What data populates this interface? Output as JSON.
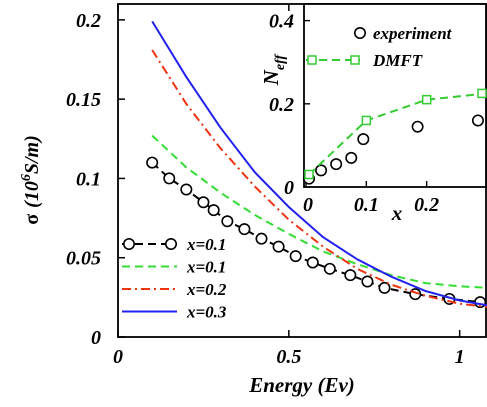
{
  "chart_data": [
    {
      "type": "line",
      "xlabel": "Energy (Ev)",
      "ylabel_symbol": "σ",
      "ylabel_unit_open": "(10",
      "ylabel_unit_exp": "6",
      "ylabel_unit_close": "S/m)",
      "xlim": [
        0,
        1.08
      ],
      "ylim": [
        0,
        0.21
      ],
      "xticks": [
        {
          "value": 0,
          "label": "0"
        },
        {
          "value": 0.5,
          "label": "0.5"
        },
        {
          "value": 1,
          "label": "1"
        }
      ],
      "yticks": [
        {
          "value": 0,
          "label": "0"
        },
        {
          "value": 0.05,
          "label": "0.05"
        },
        {
          "value": 0.1,
          "label": "0.1"
        },
        {
          "value": 0.15,
          "label": "0.15"
        },
        {
          "value": 0.2,
          "label": "0.2"
        }
      ],
      "series": [
        {
          "name": "x=0.1",
          "color": "#000000",
          "style": "dash-circle",
          "x": [
            0.1,
            0.15,
            0.2,
            0.25,
            0.28,
            0.32,
            0.37,
            0.42,
            0.47,
            0.52,
            0.57,
            0.62,
            0.68,
            0.73,
            0.78,
            0.87,
            0.97,
            1.06
          ],
          "y": [
            0.11,
            0.1,
            0.093,
            0.085,
            0.08,
            0.073,
            0.068,
            0.062,
            0.057,
            0.051,
            0.047,
            0.043,
            0.039,
            0.035,
            0.031,
            0.027,
            0.024,
            0.022
          ]
        },
        {
          "name": "x=0.1",
          "color": "#33dd33",
          "style": "dash",
          "x": [
            0.1,
            0.2,
            0.3,
            0.4,
            0.5,
            0.6,
            0.7,
            0.8,
            0.9,
            1.0,
            1.08
          ],
          "y": [
            0.127,
            0.107,
            0.091,
            0.077,
            0.065,
            0.054,
            0.046,
            0.039,
            0.034,
            0.032,
            0.031
          ]
        },
        {
          "name": "x=0.2",
          "color": "#ee3311",
          "style": "dashdot",
          "x": [
            0.1,
            0.2,
            0.3,
            0.4,
            0.5,
            0.6,
            0.7,
            0.8,
            0.9,
            1.0,
            1.08
          ],
          "y": [
            0.181,
            0.147,
            0.119,
            0.095,
            0.074,
            0.057,
            0.043,
            0.033,
            0.026,
            0.021,
            0.019
          ]
        },
        {
          "name": "x=0.3",
          "color": "#2222ee",
          "style": "solid",
          "x": [
            0.1,
            0.2,
            0.3,
            0.4,
            0.5,
            0.6,
            0.7,
            0.8,
            0.9,
            1.0,
            1.08
          ],
          "y": [
            0.199,
            0.164,
            0.132,
            0.104,
            0.082,
            0.063,
            0.049,
            0.038,
            0.029,
            0.023,
            0.02
          ]
        }
      ],
      "legend_position": "bottom-left"
    },
    {
      "type": "line",
      "xlabel": "x",
      "ylabel_main": "N",
      "ylabel_sub": "eff",
      "xlim": [
        0,
        0.3
      ],
      "ylim": [
        0,
        0.44
      ],
      "xticks": [
        {
          "value": 0,
          "label": "0"
        },
        {
          "value": 0.1,
          "label": "0.1"
        },
        {
          "value": 0.2,
          "label": "0.2"
        }
      ],
      "yticks": [
        {
          "value": 0,
          "label": "0"
        },
        {
          "value": 0.2,
          "label": "0.2"
        },
        {
          "value": 0.4,
          "label": "0.4"
        }
      ],
      "series": [
        {
          "name": "experiment",
          "color": "#000000",
          "style": "circles",
          "x": [
            0.005,
            0.025,
            0.05,
            0.075,
            0.095,
            0.185,
            0.285
          ],
          "y": [
            0.02,
            0.04,
            0.055,
            0.07,
            0.115,
            0.145,
            0.16
          ]
        },
        {
          "name": "DMFT",
          "color": "#33cc33",
          "style": "dash-square",
          "x": [
            0.005,
            0.1,
            0.2,
            0.3
          ],
          "y": [
            0.03,
            0.16,
            0.21,
            0.225
          ]
        }
      ],
      "legend_position": "top-right",
      "inset": true
    }
  ]
}
